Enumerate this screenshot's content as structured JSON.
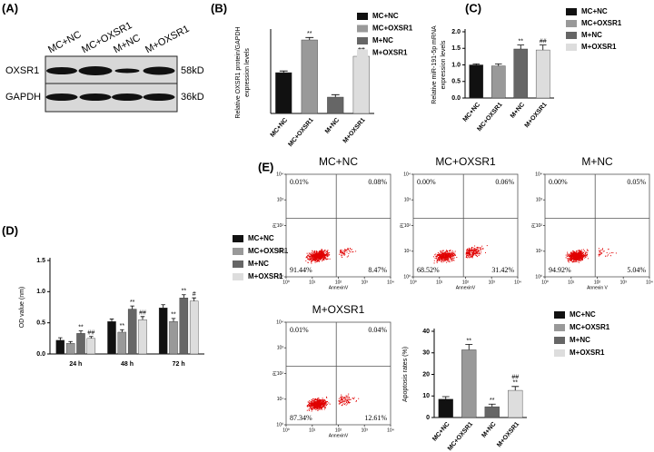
{
  "panel_labels": [
    "(A)",
    "(B)",
    "(C)",
    "(D)",
    "(E)"
  ],
  "blot": {
    "lanes": [
      "MC+NC",
      "MC+OXSR1",
      "M+NC",
      "M+OXSR1"
    ],
    "rows": [
      {
        "name": "OXSR1",
        "size": "58kD"
      },
      {
        "name": "GAPDH",
        "size": "36kD"
      }
    ]
  },
  "chart_data": [
    {
      "type": "bar",
      "y_label": [
        "Relative OXSR1 protein/GAPDH",
        "expression levels"
      ],
      "categories": [
        "MC+NC",
        "MC+OXSR1",
        "M+NC",
        "M+OXSR1"
      ],
      "values": [
        0.5,
        0.9,
        0.2,
        0.7
      ],
      "errors": [
        0.02,
        0.03,
        0.03,
        0.03
      ],
      "colors": [
        "#111111",
        "#999999",
        "#666666",
        "#dddddd"
      ],
      "annotations": [
        null,
        [
          "**"
        ],
        null,
        [
          "##"
        ]
      ],
      "ylim": [
        0,
        1
      ]
    },
    {
      "type": "bar",
      "y_label": [
        "Relative miR-191-5p mRNA",
        "expression levels"
      ],
      "categories": [
        "MC+NC",
        "MC+OXSR1",
        "M+NC",
        "M+OXSR1"
      ],
      "values": [
        1.0,
        0.97,
        1.48,
        1.45
      ],
      "errors": [
        0.03,
        0.06,
        0.12,
        0.15
      ],
      "colors": [
        "#111111",
        "#999999",
        "#666666",
        "#dddddd"
      ],
      "annotations": [
        null,
        null,
        [
          "**"
        ],
        [
          "##"
        ]
      ],
      "ylim": [
        0,
        2
      ],
      "yticks": [
        {
          "value": 0,
          "label": "0.0"
        },
        {
          "value": 0.5,
          "label": "0.5"
        },
        {
          "value": 1,
          "label": "1.0"
        },
        {
          "value": 1.5,
          "label": "1.5"
        },
        {
          "value": 2,
          "label": "2.0"
        }
      ]
    },
    {
      "type": "grouped_bar",
      "y_label": [
        "OD value (nm)"
      ],
      "categories": [
        "24 h",
        "48 h",
        "72 h"
      ],
      "series": [
        {
          "name": "MC+NC",
          "color": "#111111",
          "values": [
            0.22,
            0.52,
            0.74
          ],
          "errors": [
            0.04,
            0.04,
            0.05
          ],
          "annotations": [
            null,
            null,
            null
          ]
        },
        {
          "name": "MC+OXSR1",
          "color": "#999999",
          "values": [
            0.17,
            0.35,
            0.52
          ],
          "errors": [
            0.03,
            0.04,
            0.05
          ],
          "annotations": [
            null,
            [
              "**"
            ],
            [
              "**"
            ]
          ]
        },
        {
          "name": "M+NC",
          "color": "#666666",
          "values": [
            0.33,
            0.72,
            0.9
          ],
          "errors": [
            0.04,
            0.05,
            0.05
          ],
          "annotations": [
            [
              "**"
            ],
            [
              "**"
            ],
            [
              "**"
            ]
          ]
        },
        {
          "name": "M+OXSR1",
          "color": "#dddddd",
          "values": [
            0.25,
            0.55,
            0.85
          ],
          "errors": [
            0.03,
            0.05,
            0.05
          ],
          "annotations": [
            [
              "##"
            ],
            [
              "##"
            ],
            [
              "#"
            ]
          ]
        }
      ],
      "ylim": [
        0,
        1.5
      ],
      "yticks": [
        {
          "value": 0,
          "label": "0.0"
        },
        {
          "value": 0.5,
          "label": "0.5"
        },
        {
          "value": 1,
          "label": "1.0"
        },
        {
          "value": 1.5,
          "label": "1.5"
        }
      ]
    },
    {
      "type": "flow",
      "title": "MC+NC",
      "x_label": "AnnexinV",
      "y_label": "PI",
      "scale": "log",
      "xlim": [
        1,
        10000
      ],
      "ylim": [
        1,
        10000
      ],
      "xticks": [
        {
          "value": 1,
          "label": "10⁰"
        },
        {
          "value": 10,
          "label": "10¹"
        },
        {
          "value": 100,
          "label": "10²"
        },
        {
          "value": 1000,
          "label": "10³"
        },
        {
          "value": 10000,
          "label": "10⁴"
        }
      ],
      "yticks": [
        {
          "value": 1,
          "label": "10⁰"
        },
        {
          "value": 10,
          "label": "10¹"
        },
        {
          "value": 100,
          "label": "10²"
        },
        {
          "value": 1000,
          "label": "10³"
        },
        {
          "value": 10000,
          "label": "10⁴"
        }
      ],
      "quadrant_labels": [
        "0.01%",
        "0.08%",
        "91.44%",
        "8.47%"
      ]
    },
    {
      "type": "flow",
      "title": "MC+OXSR1",
      "x_label": "AnnexinV",
      "y_label": "PI",
      "scale": "log",
      "xlim": [
        1,
        10000
      ],
      "ylim": [
        1,
        10000
      ],
      "xticks": [
        {
          "value": 1,
          "label": "10⁰"
        },
        {
          "value": 10,
          "label": "10¹"
        },
        {
          "value": 100,
          "label": "10²"
        },
        {
          "value": 1000,
          "label": "10³"
        },
        {
          "value": 10000,
          "label": "10⁴"
        }
      ],
      "yticks": [
        {
          "value": 1,
          "label": "10⁰"
        },
        {
          "value": 10,
          "label": "10¹"
        },
        {
          "value": 100,
          "label": "10²"
        },
        {
          "value": 1000,
          "label": "10³"
        },
        {
          "value": 10000,
          "label": "10⁴"
        }
      ],
      "quadrant_labels": [
        "0.00%",
        "0.06%",
        "68.52%",
        "31.42%"
      ]
    },
    {
      "type": "flow",
      "title": "M+NC",
      "x_label": "Annexin V",
      "y_label": "PI",
      "scale": "log",
      "xlim": [
        1,
        10000
      ],
      "ylim": [
        1,
        10000
      ],
      "xticks": [
        {
          "value": 1,
          "label": "10⁰"
        },
        {
          "value": 10,
          "label": "10¹"
        },
        {
          "value": 100,
          "label": "10²"
        },
        {
          "value": 1000,
          "label": "10³"
        },
        {
          "value": 10000,
          "label": "10⁴"
        }
      ],
      "yticks": [
        {
          "value": 1,
          "label": "10⁰"
        },
        {
          "value": 10,
          "label": "10¹"
        },
        {
          "value": 100,
          "label": "10²"
        },
        {
          "value": 1000,
          "label": "10³"
        },
        {
          "value": 10000,
          "label": "10⁴"
        }
      ],
      "quadrant_labels": [
        "0.00%",
        "0.05%",
        "94.92%",
        "5.04%"
      ]
    },
    {
      "type": "flow",
      "title": "M+OXSR1",
      "x_label": "AnnexinV",
      "y_label": "PI",
      "scale": "log",
      "xlim": [
        1,
        10000
      ],
      "ylim": [
        1,
        10000
      ],
      "xticks": [
        {
          "value": 1,
          "label": "10⁰"
        },
        {
          "value": 10,
          "label": "10¹"
        },
        {
          "value": 100,
          "label": "10²"
        },
        {
          "value": 1000,
          "label": "10³"
        },
        {
          "value": 10000,
          "label": "10⁴"
        }
      ],
      "yticks": [
        {
          "value": 1,
          "label": "10⁰"
        },
        {
          "value": 10,
          "label": "10¹"
        },
        {
          "value": 100,
          "label": "10²"
        },
        {
          "value": 1000,
          "label": "10³"
        },
        {
          "value": 10000,
          "label": "10⁴"
        }
      ],
      "quadrant_labels": [
        "0.01%",
        "0.04%",
        "87.34%",
        "12.61%"
      ]
    },
    {
      "type": "bar",
      "y_label": [
        "Apoptosis rates (%)"
      ],
      "categories": [
        "MC+NC",
        "MC+OXSR1",
        "M+NC",
        "M+OXSR1"
      ],
      "values": [
        8.5,
        31.4,
        5.0,
        12.6
      ],
      "errors": [
        1.2,
        2.5,
        1.2,
        1.8
      ],
      "colors": [
        "#111111",
        "#999999",
        "#666666",
        "#dddddd"
      ],
      "annotations": [
        null,
        [
          "**"
        ],
        [
          "**"
        ],
        [
          "##",
          "**"
        ]
      ],
      "ylim": [
        0,
        40
      ],
      "yticks": [
        0,
        10,
        20,
        30,
        40
      ]
    }
  ]
}
